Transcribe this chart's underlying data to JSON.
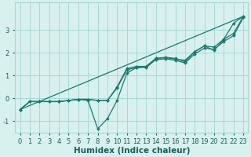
{
  "title": "",
  "xlabel": "Humidex (Indice chaleur)",
  "ylabel": "",
  "background_color": "#d8f0ee",
  "grid_color": "#aad8d4",
  "line_color": "#1a7a6e",
  "xlim": [
    -0.5,
    23.5
  ],
  "ylim": [
    -1.5,
    4.2
  ],
  "xticks": [
    0,
    1,
    2,
    3,
    4,
    5,
    6,
    7,
    8,
    9,
    10,
    11,
    12,
    13,
    14,
    15,
    16,
    17,
    18,
    19,
    20,
    21,
    22,
    23
  ],
  "yticks": [
    -1,
    0,
    1,
    2,
    3
  ],
  "series": [
    {
      "x": [
        0,
        23
      ],
      "y": [
        -0.5,
        3.6
      ]
    },
    {
      "x": [
        0,
        1,
        2,
        3,
        4,
        5,
        6,
        7,
        8,
        9,
        10,
        11,
        12,
        13,
        14,
        15,
        16,
        17,
        18,
        19,
        20,
        21,
        22,
        23
      ],
      "y": [
        -0.5,
        -0.15,
        -0.15,
        -0.15,
        -0.15,
        -0.1,
        -0.05,
        -0.1,
        -1.35,
        -0.9,
        -0.1,
        1.1,
        1.35,
        1.4,
        1.75,
        1.8,
        1.75,
        1.6,
        2.05,
        2.3,
        2.1,
        2.6,
        3.3,
        3.6
      ]
    },
    {
      "x": [
        0,
        1,
        2,
        3,
        4,
        5,
        6,
        7,
        8,
        9,
        10,
        11,
        12,
        13,
        14,
        15,
        16,
        17,
        18,
        19,
        20,
        21,
        22,
        23
      ],
      "y": [
        -0.5,
        -0.15,
        -0.15,
        -0.15,
        -0.15,
        -0.1,
        -0.05,
        -0.05,
        -0.1,
        -0.1,
        0.5,
        1.3,
        1.4,
        1.4,
        1.75,
        1.78,
        1.72,
        1.67,
        2.05,
        2.3,
        2.25,
        2.6,
        2.85,
        3.6
      ]
    },
    {
      "x": [
        0,
        1,
        2,
        3,
        4,
        5,
        6,
        7,
        8,
        9,
        10,
        11,
        12,
        13,
        14,
        15,
        16,
        17,
        18,
        19,
        20,
        21,
        22,
        23
      ],
      "y": [
        -0.5,
        -0.15,
        -0.15,
        -0.15,
        -0.15,
        -0.1,
        -0.05,
        -0.05,
        -0.1,
        -0.1,
        0.45,
        1.25,
        1.35,
        1.35,
        1.7,
        1.73,
        1.67,
        1.55,
        1.95,
        2.2,
        2.15,
        2.5,
        2.75,
        3.55
      ]
    }
  ],
  "font_color": "#1a5f5a",
  "tick_fontsize": 6,
  "label_fontsize": 7.5
}
